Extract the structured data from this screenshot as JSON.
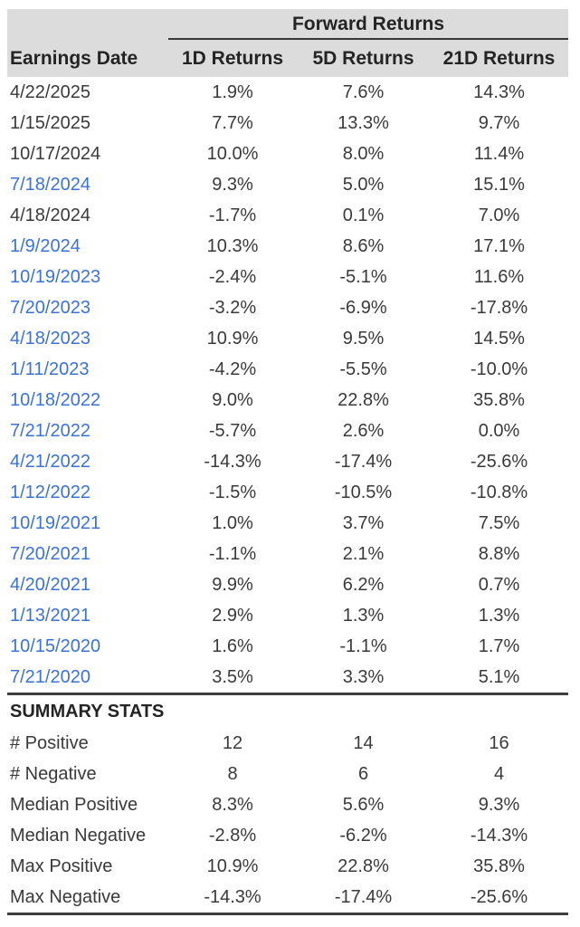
{
  "chart_data": {
    "type": "table",
    "title": "Forward Returns",
    "columns": [
      "Earnings Date",
      "1D Returns",
      "5D Returns",
      "21D Returns"
    ],
    "rows": [
      {
        "date": "4/22/2025",
        "link": false,
        "values": [
          "1.9%",
          "7.6%",
          "14.3%"
        ]
      },
      {
        "date": "1/15/2025",
        "link": false,
        "values": [
          "7.7%",
          "13.3%",
          "9.7%"
        ]
      },
      {
        "date": "10/17/2024",
        "link": false,
        "values": [
          "10.0%",
          "8.0%",
          "11.4%"
        ]
      },
      {
        "date": "7/18/2024",
        "link": true,
        "values": [
          "9.3%",
          "5.0%",
          "15.1%"
        ]
      },
      {
        "date": "4/18/2024",
        "link": false,
        "values": [
          "-1.7%",
          "0.1%",
          "7.0%"
        ]
      },
      {
        "date": "1/9/2024",
        "link": true,
        "values": [
          "10.3%",
          "8.6%",
          "17.1%"
        ]
      },
      {
        "date": "10/19/2023",
        "link": true,
        "values": [
          "-2.4%",
          "-5.1%",
          "11.6%"
        ]
      },
      {
        "date": "7/20/2023",
        "link": true,
        "values": [
          "-3.2%",
          "-6.9%",
          "-17.8%"
        ]
      },
      {
        "date": "4/18/2023",
        "link": true,
        "values": [
          "10.9%",
          "9.5%",
          "14.5%"
        ]
      },
      {
        "date": "1/11/2023",
        "link": true,
        "values": [
          "-4.2%",
          "-5.5%",
          "-10.0%"
        ]
      },
      {
        "date": "10/18/2022",
        "link": true,
        "values": [
          "9.0%",
          "22.8%",
          "35.8%"
        ]
      },
      {
        "date": "7/21/2022",
        "link": true,
        "values": [
          "-5.7%",
          "2.6%",
          "0.0%"
        ]
      },
      {
        "date": "4/21/2022",
        "link": true,
        "values": [
          "-14.3%",
          "-17.4%",
          "-25.6%"
        ]
      },
      {
        "date": "1/12/2022",
        "link": true,
        "values": [
          "-1.5%",
          "-10.5%",
          "-10.8%"
        ]
      },
      {
        "date": "10/19/2021",
        "link": true,
        "values": [
          "1.0%",
          "3.7%",
          "7.5%"
        ]
      },
      {
        "date": "7/20/2021",
        "link": true,
        "values": [
          "-1.1%",
          "2.1%",
          "8.8%"
        ]
      },
      {
        "date": "4/20/2021",
        "link": true,
        "values": [
          "9.9%",
          "6.2%",
          "0.7%"
        ]
      },
      {
        "date": "1/13/2021",
        "link": true,
        "values": [
          "2.9%",
          "1.3%",
          "1.3%"
        ]
      },
      {
        "date": "10/15/2020",
        "link": true,
        "values": [
          "1.6%",
          "-1.1%",
          "1.7%"
        ]
      },
      {
        "date": "7/21/2020",
        "link": true,
        "values": [
          "3.5%",
          "3.3%",
          "5.1%"
        ]
      }
    ],
    "summary_title": "SUMMARY STATS",
    "summary_rows": [
      {
        "label": "# Positive",
        "values": [
          "12",
          "14",
          "16"
        ]
      },
      {
        "label": "# Negative",
        "values": [
          "8",
          "6",
          "4"
        ]
      },
      {
        "label": "Median Positive",
        "values": [
          "8.3%",
          "5.6%",
          "9.3%"
        ]
      },
      {
        "label": "Median Negative",
        "values": [
          "-2.8%",
          "-6.2%",
          "-14.3%"
        ]
      },
      {
        "label": "Max Positive",
        "values": [
          "10.9%",
          "22.8%",
          "35.8%"
        ]
      },
      {
        "label": "Max Negative",
        "values": [
          "-14.3%",
          "-17.4%",
          "-25.6%"
        ]
      }
    ],
    "layout": {
      "header_underline_span": "returns-columns-only",
      "value_columns_aligned": "center",
      "date_column_aligned": "left"
    }
  },
  "colors": {
    "header_bg": "#dcdcdc",
    "link_blue": "#3b72d8",
    "text": "#3a3a3a",
    "header_text": "#242424",
    "rule": "#3e3e3e"
  }
}
